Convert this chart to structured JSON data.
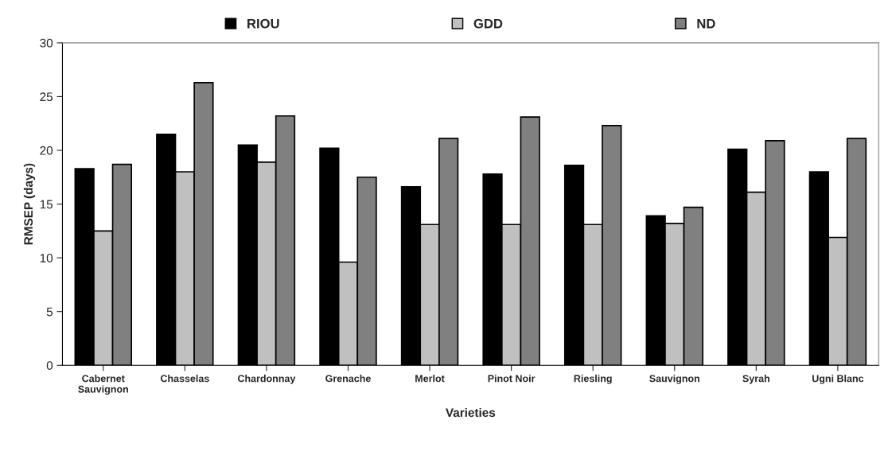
{
  "chart_data": {
    "type": "bar",
    "xlabel": "Varieties",
    "ylabel": "RMSEP (days)",
    "categories": [
      "Cabernet\nSauvignon",
      "Chasselas",
      "Chardonnay",
      "Grenache",
      "Merlot",
      "Pinot Noir",
      "Riesling",
      "Sauvignon",
      "Syrah",
      "Ugni Blanc"
    ],
    "series": [
      {
        "name": "RIOU",
        "color": "#000000",
        "values": [
          18.3,
          21.5,
          20.5,
          20.2,
          16.6,
          17.8,
          18.6,
          13.9,
          20.1,
          18.0
        ]
      },
      {
        "name": "GDD",
        "color": "#c0c0c0",
        "values": [
          12.5,
          18.0,
          18.9,
          9.6,
          13.1,
          13.1,
          13.1,
          13.2,
          16.1,
          11.9
        ]
      },
      {
        "name": "ND",
        "color": "#808080",
        "values": [
          18.7,
          26.3,
          23.2,
          17.5,
          21.1,
          23.1,
          22.3,
          14.7,
          20.9,
          21.1
        ]
      }
    ],
    "ylim": [
      0,
      30
    ],
    "yticks": [
      0,
      5,
      10,
      15,
      20,
      25,
      30
    ],
    "grid": false,
    "legend": "top"
  }
}
